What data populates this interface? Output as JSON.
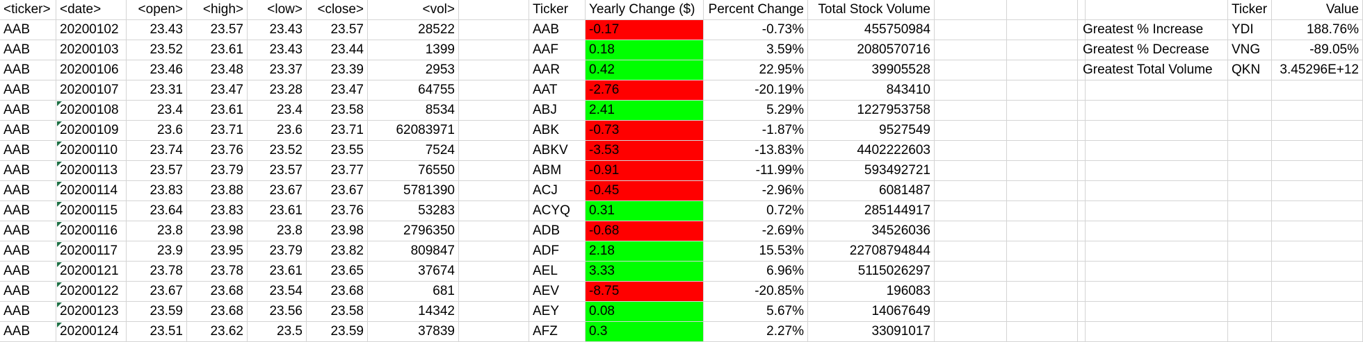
{
  "raw_table": {
    "headers": [
      "<ticker>",
      "<date>",
      "<open>",
      "<high>",
      "<low>",
      "<close>",
      "<vol>"
    ],
    "rows": [
      [
        "AAB",
        "20200102",
        "23.43",
        "23.57",
        "23.43",
        "23.57",
        "28522"
      ],
      [
        "AAB",
        "20200103",
        "23.52",
        "23.61",
        "23.43",
        "23.44",
        "1399"
      ],
      [
        "AAB",
        "20200106",
        "23.46",
        "23.48",
        "23.37",
        "23.39",
        "2953"
      ],
      [
        "AAB",
        "20200107",
        "23.31",
        "23.47",
        "23.28",
        "23.47",
        "64755"
      ],
      [
        "AAB",
        "20200108",
        "23.4",
        "23.61",
        "23.4",
        "23.58",
        "8534"
      ],
      [
        "AAB",
        "20200109",
        "23.6",
        "23.71",
        "23.6",
        "23.71",
        "62083971"
      ],
      [
        "AAB",
        "20200110",
        "23.74",
        "23.76",
        "23.52",
        "23.55",
        "7524"
      ],
      [
        "AAB",
        "20200113",
        "23.57",
        "23.79",
        "23.57",
        "23.77",
        "76550"
      ],
      [
        "AAB",
        "20200114",
        "23.83",
        "23.88",
        "23.67",
        "23.67",
        "5781390"
      ],
      [
        "AAB",
        "20200115",
        "23.64",
        "23.83",
        "23.61",
        "23.76",
        "53283"
      ],
      [
        "AAB",
        "20200116",
        "23.8",
        "23.98",
        "23.8",
        "23.98",
        "2796350"
      ],
      [
        "AAB",
        "20200117",
        "23.9",
        "23.95",
        "23.79",
        "23.82",
        "809847"
      ],
      [
        "AAB",
        "20200121",
        "23.78",
        "23.78",
        "23.61",
        "23.65",
        "37674"
      ],
      [
        "AAB",
        "20200122",
        "23.67",
        "23.68",
        "23.54",
        "23.68",
        "681"
      ],
      [
        "AAB",
        "20200123",
        "23.59",
        "23.68",
        "23.56",
        "23.58",
        "14342"
      ],
      [
        "AAB",
        "20200124",
        "23.51",
        "23.62",
        "23.5",
        "23.59",
        "37839"
      ]
    ]
  },
  "summary_table": {
    "headers": [
      "Ticker",
      "Yearly Change ($)",
      "Percent Change",
      "Total Stock Volume"
    ],
    "rows": [
      [
        "AAB",
        "-0.17",
        "-0.73%",
        "455750984"
      ],
      [
        "AAF",
        "0.18",
        "3.59%",
        "2080570716"
      ],
      [
        "AAR",
        "0.42",
        "22.95%",
        "39905528"
      ],
      [
        "AAT",
        "-2.76",
        "-20.19%",
        "843410"
      ],
      [
        "ABJ",
        "2.41",
        "5.29%",
        "1227953758"
      ],
      [
        "ABK",
        "-0.73",
        "-1.87%",
        "9527549"
      ],
      [
        "ABKV",
        "-3.53",
        "-13.83%",
        "4402222603"
      ],
      [
        "ABM",
        "-0.91",
        "-11.99%",
        "593492721"
      ],
      [
        "ACJ",
        "-0.45",
        "-2.96%",
        "6081487"
      ],
      [
        "ACYQ",
        "0.31",
        "0.72%",
        "285144917"
      ],
      [
        "ADB",
        "-0.68",
        "-2.69%",
        "34526036"
      ],
      [
        "ADF",
        "2.18",
        "15.53%",
        "22708794844"
      ],
      [
        "AEL",
        "3.33",
        "6.96%",
        "5115026297"
      ],
      [
        "AEV",
        "-8.75",
        "-20.85%",
        "196083"
      ],
      [
        "AEY",
        "0.08",
        "5.67%",
        "14067649"
      ],
      [
        "AFZ",
        "0.3",
        "2.27%",
        "33091017"
      ]
    ]
  },
  "greatest_table": {
    "headers": [
      "",
      "Ticker",
      "Value"
    ],
    "rows": [
      [
        "Greatest % Increase",
        "YDI",
        "188.76%"
      ],
      [
        "Greatest % Decrease",
        "VNG",
        "-89.05%"
      ],
      [
        "Greatest Total Volume",
        "QKN",
        "3.45296E+12"
      ]
    ]
  },
  "colors": {
    "negative_fill": "#ff0000",
    "positive_fill": "#00ff00",
    "gridline": "#d4d4d4",
    "error_marker": "#1e7145"
  }
}
